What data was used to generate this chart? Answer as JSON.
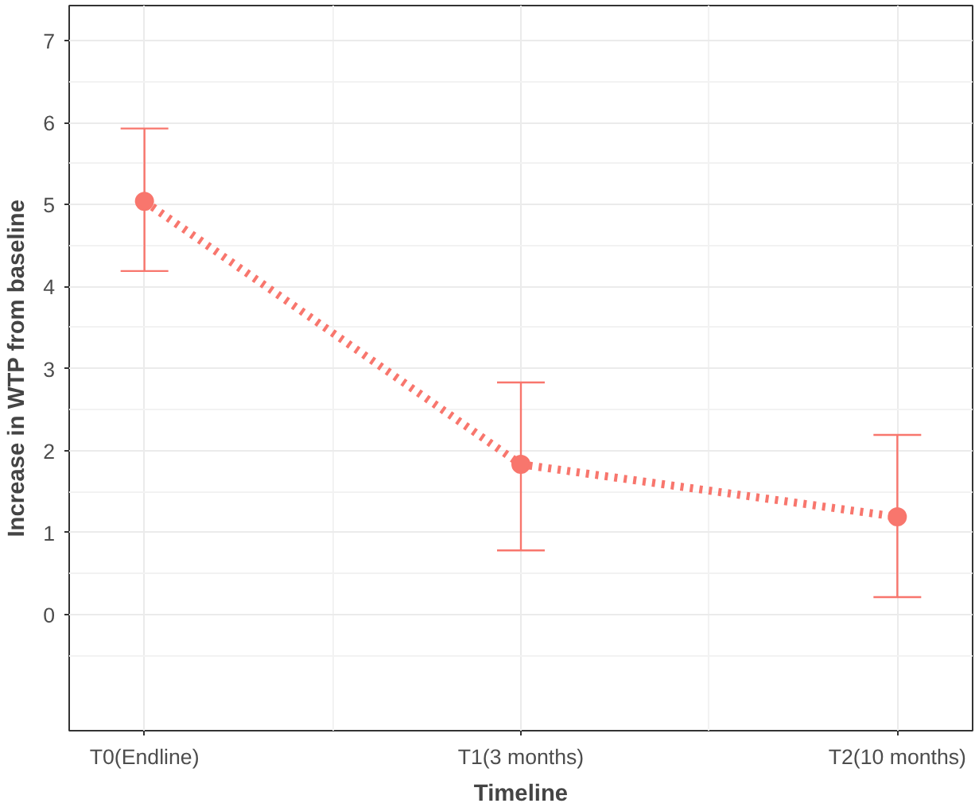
{
  "chart_data": {
    "type": "line",
    "xlabel": "Timeline",
    "ylabel": "Increase in WTP from baseline",
    "categories": [
      "T0(Endline)",
      "T1(3 months)",
      "T2(10 months)"
    ],
    "series": [
      {
        "color": "#f8766d",
        "values": [
          5.04,
          1.83,
          1.19
        ],
        "errors": [
          [
            4.19,
            5.93
          ],
          [
            0.78,
            2.83
          ],
          [
            0.21,
            2.19
          ]
        ]
      }
    ],
    "ylim": [
      -1.42,
      7.43
    ],
    "yticks": [
      0,
      1,
      2,
      3,
      4,
      5,
      6,
      7
    ],
    "grid": true,
    "marker": "circle",
    "line_style": "dotted"
  }
}
